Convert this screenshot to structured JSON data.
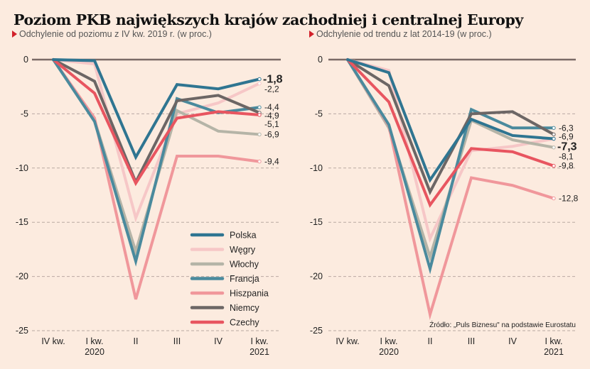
{
  "title": "Poziom PKB największych krajów zachodniej i centralnej Europy",
  "source": "Źródło: „Puls Biznesu\" na podstawie Eurostatu",
  "chart_data": [
    {
      "type": "line",
      "subtitle": "Odchylenie od poziomu z IV kw. 2019 r. (w proc.)",
      "categories": [
        "IV kw.",
        "I kw.|2020",
        "II",
        "III",
        "IV",
        "I kw.|2021"
      ],
      "yticks": [
        0,
        -5,
        -10,
        -15,
        -20,
        -25
      ],
      "ylim": [
        -25,
        0
      ],
      "grid": true,
      "legend": "bottom-right",
      "highlight": "Polska",
      "series": [
        {
          "name": "Polska",
          "color": "#2f7591",
          "values": [
            0,
            -0.1,
            -9.0,
            -2.3,
            -2.7,
            -1.8
          ],
          "end_label": "-1,8"
        },
        {
          "name": "Węgry",
          "color": "#f6c7c7",
          "values": [
            0,
            -0.4,
            -14.6,
            -5.0,
            -4.0,
            -2.2
          ],
          "end_label": "-2,2"
        },
        {
          "name": "Włochy",
          "color": "#b5b4a7",
          "values": [
            0,
            -5.6,
            -17.7,
            -4.7,
            -6.6,
            -6.9
          ],
          "end_label": "-6,9"
        },
        {
          "name": "Francja",
          "color": "#4a8a9d",
          "values": [
            0,
            -5.7,
            -18.6,
            -3.6,
            -4.9,
            -4.4
          ],
          "end_label": "-4,4"
        },
        {
          "name": "Hiszpania",
          "color": "#f0979b",
          "values": [
            0,
            -5.4,
            -22.1,
            -8.9,
            -8.9,
            -9.4
          ],
          "end_label": "-9,4"
        },
        {
          "name": "Niemcy",
          "color": "#6c6665",
          "values": [
            0,
            -2.0,
            -11.3,
            -3.8,
            -3.3,
            -4.9
          ],
          "end_label": "-4,9"
        },
        {
          "name": "Czechy",
          "color": "#e85560",
          "values": [
            0,
            -3.1,
            -11.4,
            -5.4,
            -4.8,
            -5.1
          ],
          "end_label": "-5,1"
        }
      ]
    },
    {
      "type": "line",
      "subtitle": "Odchylenie od trendu z lat 2014-19 (w proc.)",
      "categories": [
        "IV kw.",
        "I kw.|2020",
        "II",
        "III",
        "IV",
        "I kw.|2021"
      ],
      "yticks": [
        0,
        -5,
        -10,
        -15,
        -20,
        -25
      ],
      "ylim": [
        -25,
        0
      ],
      "grid": true,
      "highlight": "Polska",
      "series": [
        {
          "name": "Polska",
          "color": "#2f7591",
          "values": [
            0,
            -1.2,
            -11.1,
            -5.5,
            -7.0,
            -7.3
          ],
          "end_label": "-7,3"
        },
        {
          "name": "Węgry",
          "color": "#f6c7c7",
          "values": [
            0,
            -1.0,
            -16.5,
            -8.4,
            -8.0,
            -7.3
          ],
          "end_label": ""
        },
        {
          "name": "Włochy",
          "color": "#b5b4a7",
          "values": [
            0,
            -6.3,
            -18.2,
            -5.6,
            -7.4,
            -8.1
          ],
          "end_label": "-8,1"
        },
        {
          "name": "Francja",
          "color": "#4a8a9d",
          "values": [
            0,
            -6.0,
            -19.3,
            -4.6,
            -6.3,
            -6.3
          ],
          "end_label": "-6,3"
        },
        {
          "name": "Hiszpania",
          "color": "#f0979b",
          "values": [
            0,
            -6.1,
            -23.5,
            -10.9,
            -11.6,
            -12.8
          ],
          "end_label": "-12,8"
        },
        {
          "name": "Niemcy",
          "color": "#6c6665",
          "values": [
            0,
            -2.4,
            -12.2,
            -5.0,
            -4.8,
            -6.9
          ],
          "end_label": "-6,9"
        },
        {
          "name": "Czechy",
          "color": "#e85560",
          "values": [
            0,
            -3.9,
            -13.4,
            -8.2,
            -8.5,
            -9.8
          ],
          "end_label": "-9,8"
        }
      ]
    }
  ]
}
